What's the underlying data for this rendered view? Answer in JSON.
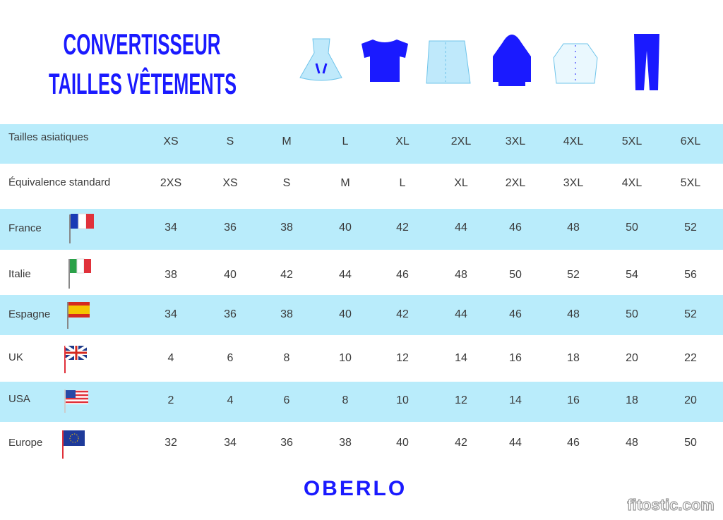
{
  "header": {
    "title_line1": "CONVERTISSEUR",
    "title_line2": "TAILLES VÊTEMENTS"
  },
  "table": {
    "rows": [
      {
        "label": "Tailles asiatiques",
        "cells": [
          "XS",
          "S",
          "M",
          "L",
          "XL",
          "2XL",
          "3XL",
          "4XL",
          "5XL",
          "6XL"
        ]
      },
      {
        "label": "Équivalence standard",
        "cells": [
          "2XS",
          "XS",
          "S",
          "M",
          "L",
          "XL",
          "2XL",
          "3XL",
          "4XL",
          "5XL"
        ]
      },
      {
        "label": "France",
        "cells": [
          34,
          36,
          38,
          40,
          42,
          44,
          46,
          48,
          50,
          52
        ]
      },
      {
        "label": "Italie",
        "cells": [
          38,
          40,
          42,
          44,
          46,
          48,
          50,
          52,
          54,
          56
        ]
      },
      {
        "label": "Espagne",
        "cells": [
          34,
          36,
          38,
          40,
          42,
          44,
          46,
          48,
          50,
          52
        ]
      },
      {
        "label": "UK",
        "cells": [
          4,
          6,
          8,
          10,
          12,
          14,
          16,
          18,
          20,
          22
        ]
      },
      {
        "label": "USA",
        "cells": [
          2,
          4,
          6,
          8,
          10,
          12,
          14,
          16,
          18,
          20
        ]
      },
      {
        "label": "Europe",
        "cells": [
          32,
          34,
          36,
          38,
          40,
          42,
          44,
          46,
          48,
          50
        ]
      }
    ]
  },
  "footer": {
    "logo": "OBERLO",
    "watermark": "fitostic.com"
  }
}
